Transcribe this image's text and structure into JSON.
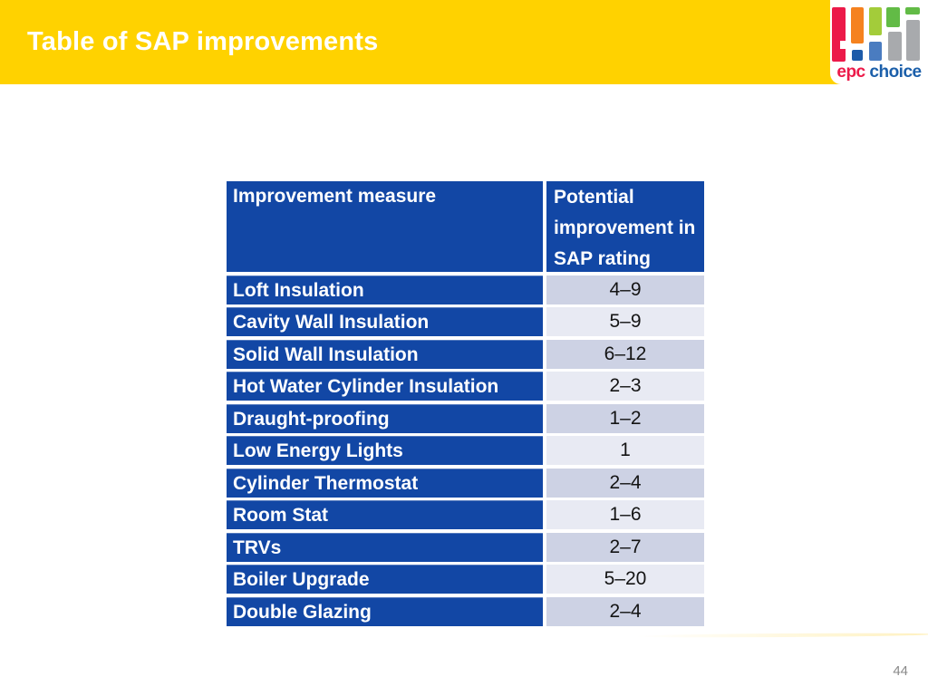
{
  "slide": {
    "title": "Table of SAP improvements",
    "page_number": "44"
  },
  "logo": {
    "epc": "epc",
    "choice": "choice"
  },
  "table": {
    "header": {
      "col1": "Improvement measure",
      "col2": "Potential improvement in SAP rating"
    },
    "rows": [
      {
        "measure": "Loft Insulation",
        "improvement": "4–9"
      },
      {
        "measure": "Cavity Wall Insulation",
        "improvement": "5–9"
      },
      {
        "measure": "Solid Wall Insulation",
        "improvement": "6–12"
      },
      {
        "measure": "Hot Water Cylinder Insulation",
        "improvement": "2–3"
      },
      {
        "measure": "Draught-proofing",
        "improvement": "1–2"
      },
      {
        "measure": "Low Energy Lights",
        "improvement": "1"
      },
      {
        "measure": "Cylinder Thermostat",
        "improvement": "2–4"
      },
      {
        "measure": "Room Stat",
        "improvement": "1–6"
      },
      {
        "measure": "TRVs",
        "improvement": "2–7"
      },
      {
        "measure": "Boiler Upgrade",
        "improvement": "5–20"
      },
      {
        "measure": "Double Glazing",
        "improvement": "2–4"
      }
    ]
  },
  "colors": {
    "band_yellow": "#FFD200",
    "title_white": "#FFFFFF",
    "table_blue": "#1247A5",
    "value_row_dark": "#CDD2E4",
    "value_row_light": "#E8EAF3",
    "value_text": "#141414",
    "page_number_gray": "#8A8A8A",
    "logo_red": "#EC1A49",
    "logo_orange": "#F5821F",
    "logo_lightgreen": "#A3CC3A",
    "logo_green": "#62BB46",
    "logo_darkblue": "#1D5BA9",
    "logo_midblue": "#4A7CC0",
    "logo_gray": "#A8AAAD",
    "logo_text_blue": "#1B5FAA"
  }
}
